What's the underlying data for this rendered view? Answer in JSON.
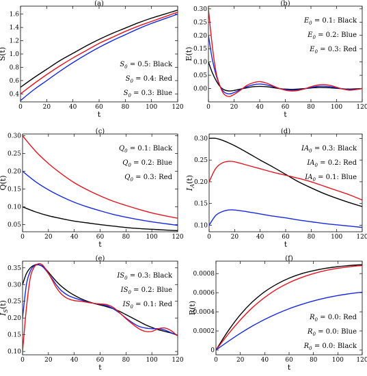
{
  "chart_data": [
    {
      "type": "line",
      "title": "(a)",
      "xlabel": "t",
      "ylabel": "S(t)",
      "xlim": [
        0,
        120
      ],
      "ylim": [
        0.28,
        1.72
      ],
      "xticks": [
        0,
        20,
        40,
        60,
        80,
        100,
        120
      ],
      "yticks": [
        0.4,
        0.6,
        0.8,
        1.0,
        1.2,
        1.4,
        1.6
      ],
      "ytick_labels": [
        "0.4",
        "0.6",
        "0.8",
        "1.0",
        "1.2",
        "1.4",
        "1.6"
      ],
      "legend_position": "bottom-right",
      "legend": [
        "S0 = 0.5:  Black",
        "S0 = 0.4:  Red",
        "S0 = 0.3:  Blue"
      ],
      "x": [
        0,
        10,
        20,
        30,
        40,
        50,
        60,
        70,
        80,
        90,
        100,
        110,
        120
      ],
      "series": [
        {
          "color": "#000000",
          "values": [
            0.5,
            0.64,
            0.77,
            0.9,
            1.01,
            1.12,
            1.22,
            1.31,
            1.39,
            1.47,
            1.54,
            1.6,
            1.66
          ]
        },
        {
          "color": "#e0141e",
          "values": [
            0.4,
            0.55,
            0.69,
            0.82,
            0.94,
            1.05,
            1.16,
            1.25,
            1.34,
            1.42,
            1.49,
            1.56,
            1.63
          ]
        },
        {
          "color": "#1428e0",
          "values": [
            0.3,
            0.46,
            0.6,
            0.74,
            0.87,
            0.99,
            1.1,
            1.2,
            1.29,
            1.38,
            1.46,
            1.53,
            1.6
          ]
        }
      ]
    },
    {
      "type": "line",
      "title": "(b)",
      "xlabel": "t",
      "ylabel": "E(t)",
      "xlim": [
        0,
        120
      ],
      "ylim": [
        -0.05,
        0.31
      ],
      "xticks": [
        0,
        20,
        40,
        60,
        80,
        100,
        120
      ],
      "yticks": [
        0.0,
        0.05,
        0.1,
        0.15,
        0.2,
        0.25,
        0.3
      ],
      "ytick_labels": [
        "0.00",
        "0.05",
        "0.10",
        "0.15",
        "0.20",
        "0.25",
        "0.30"
      ],
      "legend_position": "top-right",
      "legend": [
        "E0 = 0.1:  Black",
        "E0 = 0.2:  Blue",
        "E0 = 0.3:  Red"
      ],
      "x": [
        0,
        3,
        6,
        9,
        12,
        16,
        20,
        25,
        30,
        35,
        40,
        45,
        50,
        55,
        60,
        65,
        70,
        75,
        80,
        85,
        90,
        95,
        100,
        105,
        110,
        115,
        120
      ],
      "series": [
        {
          "color": "#000000",
          "values": [
            0.1,
            0.06,
            0.03,
            0.008,
            -0.004,
            -0.009,
            -0.007,
            -0.002,
            0.003,
            0.007,
            0.008,
            0.007,
            0.004,
            0.0,
            -0.002,
            -0.003,
            -0.002,
            0.0,
            0.002,
            0.004,
            0.004,
            0.003,
            0.001,
            -0.001,
            -0.002,
            -0.001,
            0.0
          ]
        },
        {
          "color": "#1428e0",
          "values": [
            0.2,
            0.11,
            0.05,
            0.01,
            -0.012,
            -0.02,
            -0.015,
            -0.004,
            0.007,
            0.014,
            0.017,
            0.014,
            0.008,
            0.001,
            -0.004,
            -0.006,
            -0.005,
            -0.001,
            0.004,
            0.008,
            0.009,
            0.007,
            0.003,
            -0.001,
            -0.004,
            -0.003,
            0.0
          ]
        },
        {
          "color": "#e0141e",
          "values": [
            0.3,
            0.16,
            0.06,
            0.01,
            -0.02,
            -0.03,
            -0.022,
            -0.006,
            0.012,
            0.022,
            0.026,
            0.021,
            0.011,
            0.001,
            -0.006,
            -0.009,
            -0.007,
            -0.001,
            0.007,
            0.013,
            0.015,
            0.012,
            0.005,
            -0.002,
            -0.006,
            -0.004,
            0.0
          ]
        }
      ]
    },
    {
      "type": "line",
      "title": "(c)",
      "xlabel": "t",
      "ylabel": "Q(t)",
      "xlim": [
        0,
        120
      ],
      "ylim": [
        0.03,
        0.305
      ],
      "xticks": [
        0,
        20,
        40,
        60,
        80,
        100,
        120
      ],
      "yticks": [
        0.05,
        0.1,
        0.15,
        0.2,
        0.25,
        0.3
      ],
      "ytick_labels": [
        "0.05",
        "0.10",
        "0.15",
        "0.20",
        "0.25",
        "0.30"
      ],
      "legend_position": "top-right",
      "legend": [
        "Q0 = 0.1:  Black",
        "Q0 = 0.2:  Blue",
        "Q0 = 0.3:  Red"
      ],
      "x": [
        0,
        10,
        20,
        30,
        40,
        50,
        60,
        70,
        80,
        90,
        100,
        110,
        120
      ],
      "series": [
        {
          "color": "#000000",
          "values": [
            0.1,
            0.086,
            0.075,
            0.067,
            0.06,
            0.055,
            0.05,
            0.046,
            0.042,
            0.039,
            0.037,
            0.035,
            0.033
          ]
        },
        {
          "color": "#1428e0",
          "values": [
            0.2,
            0.171,
            0.148,
            0.129,
            0.113,
            0.1,
            0.089,
            0.079,
            0.071,
            0.064,
            0.058,
            0.053,
            0.048
          ]
        },
        {
          "color": "#e0141e",
          "values": [
            0.3,
            0.257,
            0.222,
            0.193,
            0.168,
            0.148,
            0.131,
            0.116,
            0.104,
            0.093,
            0.083,
            0.075,
            0.068
          ]
        }
      ]
    },
    {
      "type": "line",
      "title": "(d)",
      "xlabel": "t",
      "ylabel": "IA(t)",
      "xlim": [
        0,
        120
      ],
      "ylim": [
        0.085,
        0.31
      ],
      "xticks": [
        0,
        20,
        40,
        60,
        80,
        100,
        120
      ],
      "yticks": [
        0.1,
        0.15,
        0.2,
        0.25,
        0.3
      ],
      "ytick_labels": [
        "0.10",
        "0.15",
        "0.20",
        "0.25",
        "0.30"
      ],
      "legend_position": "top-right",
      "legend": [
        "IA0 = 0.3:  Black",
        "IA0 = 0.2:  Red",
        "IA0 = 0.1:  Blue"
      ],
      "x": [
        0,
        5,
        10,
        15,
        20,
        30,
        40,
        50,
        60,
        70,
        80,
        90,
        100,
        110,
        120
      ],
      "series": [
        {
          "color": "#000000",
          "values": [
            0.3,
            0.3,
            0.296,
            0.29,
            0.283,
            0.267,
            0.25,
            0.234,
            0.217,
            0.2,
            0.186,
            0.173,
            0.162,
            0.152,
            0.143
          ]
        },
        {
          "color": "#e0141e",
          "values": [
            0.2,
            0.23,
            0.243,
            0.247,
            0.246,
            0.238,
            0.23,
            0.222,
            0.215,
            0.208,
            0.2,
            0.19,
            0.18,
            0.17,
            0.158
          ]
        },
        {
          "color": "#1428e0",
          "values": [
            0.1,
            0.122,
            0.131,
            0.135,
            0.135,
            0.131,
            0.126,
            0.121,
            0.117,
            0.112,
            0.108,
            0.104,
            0.101,
            0.098,
            0.095
          ]
        }
      ]
    },
    {
      "type": "line",
      "title": "(e)",
      "xlabel": "t",
      "ylabel": "IS(t)",
      "xlim": [
        0,
        120
      ],
      "ylim": [
        0.09,
        0.37
      ],
      "xticks": [
        0,
        20,
        40,
        60,
        80,
        100,
        120
      ],
      "yticks": [
        0.1,
        0.15,
        0.2,
        0.25,
        0.3,
        0.35
      ],
      "ytick_labels": [
        "0.10",
        "0.15",
        "0.20",
        "0.25",
        "0.30",
        "0.35"
      ],
      "legend_position": "top-right",
      "legend": [
        "IS0 = 0.3:  Black",
        "IS0 = 0.2:  Blue",
        "IS0 = 0.1:  Red"
      ],
      "x": [
        0,
        3,
        6,
        9,
        12,
        15,
        18,
        22,
        26,
        30,
        35,
        40,
        45,
        50,
        55,
        60,
        65,
        70,
        75,
        80,
        85,
        90,
        95,
        100,
        105,
        110,
        115,
        120
      ],
      "series": [
        {
          "color": "#000000",
          "values": [
            0.3,
            0.333,
            0.35,
            0.358,
            0.36,
            0.356,
            0.346,
            0.328,
            0.31,
            0.295,
            0.28,
            0.268,
            0.258,
            0.25,
            0.244,
            0.239,
            0.234,
            0.228,
            0.22,
            0.21,
            0.2,
            0.19,
            0.18,
            0.172,
            0.165,
            0.16,
            0.155,
            0.148
          ]
        },
        {
          "color": "#1428e0",
          "values": [
            0.2,
            0.3,
            0.34,
            0.356,
            0.359,
            0.355,
            0.343,
            0.322,
            0.3,
            0.282,
            0.268,
            0.26,
            0.254,
            0.248,
            0.244,
            0.241,
            0.237,
            0.228,
            0.215,
            0.2,
            0.186,
            0.175,
            0.17,
            0.168,
            0.168,
            0.164,
            0.156,
            0.148
          ]
        },
        {
          "color": "#e0141e",
          "values": [
            0.1,
            0.23,
            0.32,
            0.352,
            0.362,
            0.36,
            0.346,
            0.32,
            0.292,
            0.272,
            0.258,
            0.252,
            0.25,
            0.247,
            0.244,
            0.242,
            0.24,
            0.232,
            0.216,
            0.198,
            0.182,
            0.168,
            0.16,
            0.16,
            0.168,
            0.17,
            0.162,
            0.146
          ]
        }
      ]
    },
    {
      "type": "line",
      "title": "(f)",
      "xlabel": "t",
      "ylabel": "R(t)",
      "xlim": [
        0,
        120
      ],
      "ylim": [
        -5e-05,
        0.00093
      ],
      "xticks": [
        0,
        20,
        40,
        60,
        80,
        100,
        120
      ],
      "yticks": [
        0.0,
        0.0002,
        0.0004,
        0.0006,
        0.0008
      ],
      "ytick_labels": [
        "0",
        "0.0002",
        "0.0004",
        "0.0006",
        "0.0008"
      ],
      "legend_position": "bottom-right",
      "legend": [
        "R0 = 0.0:  Red",
        "R0 = 0.0:  Blue",
        "R0 = 0.0:  Black"
      ],
      "x": [
        0,
        10,
        20,
        30,
        40,
        50,
        60,
        70,
        80,
        90,
        100,
        110,
        120
      ],
      "series": [
        {
          "color": "#000000",
          "values": [
            0.0,
            0.0002,
            0.00037,
            0.000505,
            0.00061,
            0.00069,
            0.000752,
            0.000798,
            0.00083,
            0.000855,
            0.000872,
            0.000885,
            0.000893
          ]
        },
        {
          "color": "#e0141e",
          "values": [
            0.0,
            0.000165,
            0.000315,
            0.000445,
            0.00055,
            0.000637,
            0.000705,
            0.000758,
            0.0008,
            0.000832,
            0.000855,
            0.000872,
            0.000884
          ]
        },
        {
          "color": "#1428e0",
          "values": [
            0.0,
            9e-05,
            0.000175,
            0.000252,
            0.00032,
            0.00038,
            0.000432,
            0.000476,
            0.000514,
            0.000545,
            0.00057,
            0.00059,
            0.000606
          ]
        }
      ]
    }
  ]
}
